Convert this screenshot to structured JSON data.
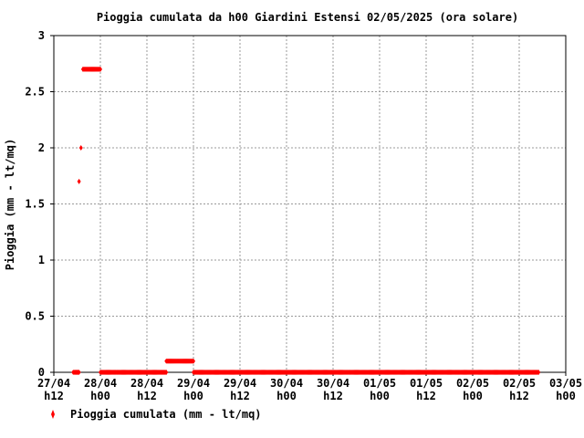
{
  "chart_data": {
    "type": "scatter",
    "title": "Pioggia cumulata da h00 Giardini Estensi 02/05/2025 (ora solare)",
    "xlabel": "",
    "ylabel": "Pioggia (mm - lt/mq)",
    "ylim": [
      0,
      3
    ],
    "y_ticks": [
      "0",
      "0.5",
      "1",
      "1.5",
      "2",
      "2.5",
      "3"
    ],
    "x_ticks": [
      {
        "day": "27/04",
        "hour": "h12"
      },
      {
        "day": "28/04",
        "hour": "h00"
      },
      {
        "day": "28/04",
        "hour": "h12"
      },
      {
        "day": "29/04",
        "hour": "h00"
      },
      {
        "day": "29/04",
        "hour": "h12"
      },
      {
        "day": "30/04",
        "hour": "h00"
      },
      {
        "day": "30/04",
        "hour": "h12"
      },
      {
        "day": "01/05",
        "hour": "h00"
      },
      {
        "day": "01/05",
        "hour": "h12"
      },
      {
        "day": "02/05",
        "hour": "h00"
      },
      {
        "day": "02/05",
        "hour": "h12"
      },
      {
        "day": "03/05",
        "hour": "h00"
      }
    ],
    "x_range_hours": [
      0,
      132
    ],
    "x_origin": "27/04 h12",
    "grid": true,
    "legend_position": "bottom-left",
    "color": "#ff0000",
    "series": [
      {
        "name": "Pioggia cumulata (mm - lt/mq)",
        "segments": [
          {
            "x_start": 5.0,
            "x_end": 6.5,
            "y": 0
          },
          {
            "x_start": 6.5,
            "x_end": 6.5,
            "y": 1.7
          },
          {
            "x_start": 7.0,
            "x_end": 7.0,
            "y": 2.0
          },
          {
            "x_start": 7.5,
            "x_end": 12.0,
            "y": 2.7
          },
          {
            "x_start": 12.0,
            "x_end": 29.0,
            "y": 0
          },
          {
            "x_start": 29.0,
            "x_end": 36.0,
            "y": 0.1
          },
          {
            "x_start": 36.0,
            "x_end": 125.0,
            "y": 0
          }
        ]
      }
    ]
  }
}
